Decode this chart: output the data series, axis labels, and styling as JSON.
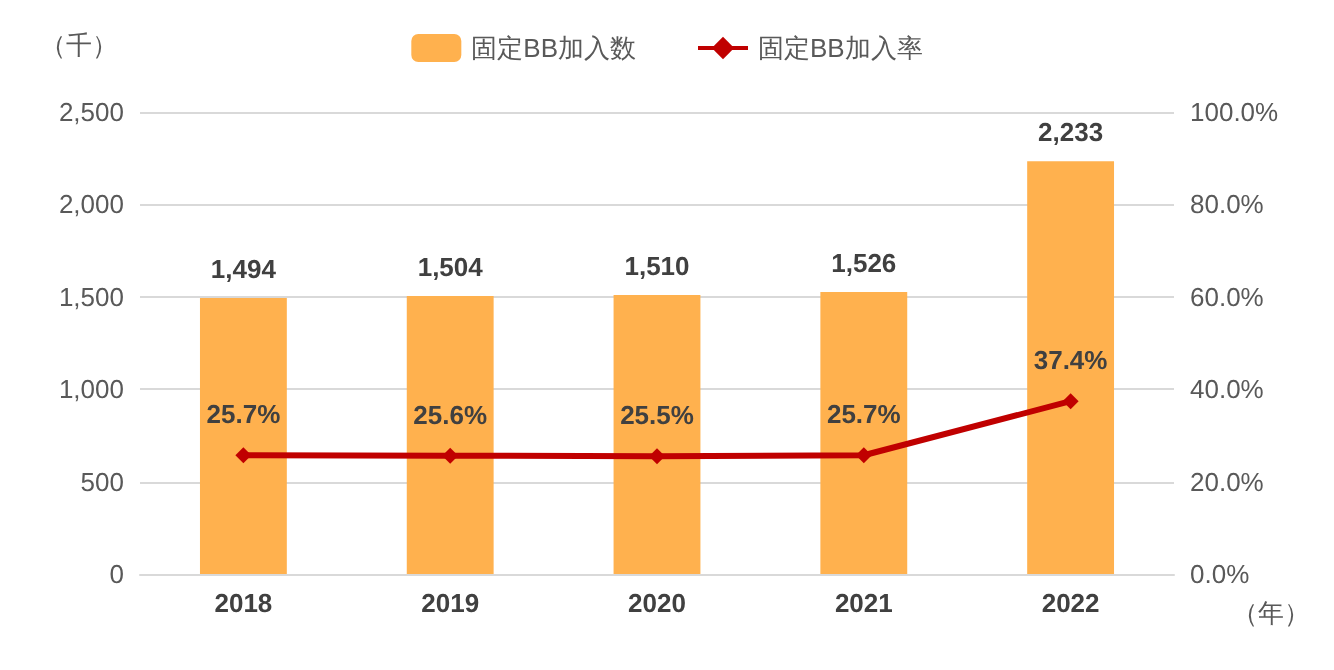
{
  "chart_data": {
    "type": "bar",
    "ylabel": "（千）",
    "xlabel": "（年）",
    "categories": [
      "2018",
      "2019",
      "2020",
      "2021",
      "2022"
    ],
    "series": [
      {
        "name": "固定BB加入数",
        "color": "#ffb14e",
        "values": [
          1494,
          1504,
          1510,
          1526,
          2233
        ],
        "value_labels": [
          "1,494",
          "1,504",
          "1,510",
          "1,526",
          "2,233"
        ]
      },
      {
        "name": "固定BB加入率",
        "type": "line",
        "axis": "y2",
        "color": "#c00000",
        "marker": "diamond",
        "values": [
          25.7,
          25.6,
          25.5,
          25.7,
          37.4
        ],
        "value_labels": [
          "25.7%",
          "25.6%",
          "25.5%",
          "25.7%",
          "37.4%"
        ]
      }
    ],
    "ylim": [
      0,
      2500
    ],
    "yticks": [
      {
        "value": 0,
        "label": "0"
      },
      {
        "value": 500,
        "label": "500"
      },
      {
        "value": 1000,
        "label": "1,000"
      },
      {
        "value": 1500,
        "label": "1,500"
      },
      {
        "value": 2000,
        "label": "2,000"
      },
      {
        "value": 2500,
        "label": "2,500"
      }
    ],
    "y2lim": [
      0,
      100
    ],
    "y2ticks": [
      {
        "value": 0,
        "label": "0.0%"
      },
      {
        "value": 20,
        "label": "20.0%"
      },
      {
        "value": 40,
        "label": "40.0%"
      },
      {
        "value": 60,
        "label": "60.0%"
      },
      {
        "value": 80,
        "label": "80.0%"
      },
      {
        "value": 100,
        "label": "100.0%"
      }
    ],
    "grid": "y",
    "legend": "top"
  }
}
